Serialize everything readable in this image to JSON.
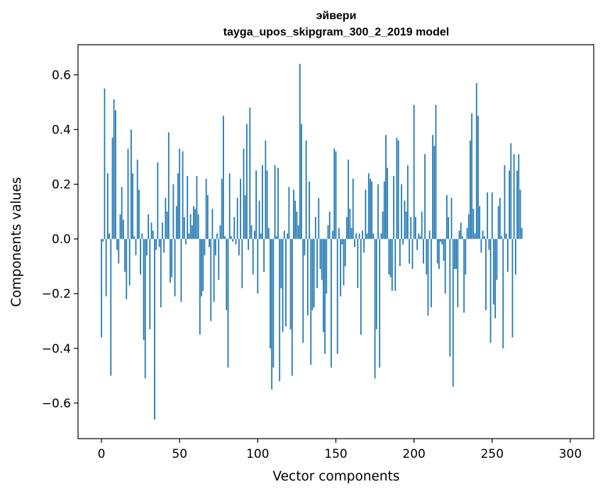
{
  "chart_data": {
    "type": "bar",
    "title": "эйвери",
    "subtitle": "tayga_upos_skipgram_300_2_2019 model",
    "xlabel": "Vector components",
    "ylabel": "Components values",
    "xlim": [
      -15,
      315
    ],
    "ylim": [
      -0.73,
      0.71
    ],
    "xticks": [
      0,
      50,
      100,
      150,
      200,
      250,
      300
    ],
    "xtick_labels": [
      "0",
      "50",
      "100",
      "150",
      "200",
      "250",
      "300"
    ],
    "yticks": [
      -0.6,
      -0.4,
      -0.2,
      0.0,
      0.2,
      0.4,
      0.6
    ],
    "ytick_labels": [
      "−0.6",
      "−0.4",
      "−0.2",
      "0.0",
      "0.2",
      "0.4",
      "0.6"
    ],
    "bar_color": "#1f77b4",
    "bar_width": 0.8,
    "series": [
      {
        "name": "эйвери",
        "x_start": 0,
        "values": [
          -0.36,
          -0.01,
          0.55,
          -0.21,
          0.24,
          0.02,
          -0.5,
          0.37,
          0.51,
          0.47,
          -0.04,
          -0.09,
          0.09,
          0.19,
          0.07,
          -0.12,
          -0.22,
          0.33,
          -0.17,
          0.4,
          0.24,
          0.01,
          -0.06,
          0.29,
          0.18,
          -0.13,
          0.02,
          -0.37,
          -0.51,
          -0.06,
          0.09,
          -0.33,
          0.06,
          0.03,
          -0.66,
          -0.04,
          0.28,
          -0.03,
          -0.25,
          0.06,
          -0.05,
          0.15,
          0.1,
          0.39,
          -0.16,
          -0.14,
          0.2,
          -0.21,
          0.12,
          0.24,
          0.33,
          -0.23,
          0.32,
          0.08,
          -0.02,
          0.23,
          0.02,
          0.09,
          0.05,
          0.12,
          0.11,
          0.23,
          0.09,
          -0.35,
          -0.21,
          -0.19,
          -0.06,
          0.22,
          0.16,
          -0.03,
          -0.3,
          0.11,
          -0.23,
          -0.06,
          0.02,
          -0.15,
          0.05,
          0.22,
          0.45,
          0.01,
          -0.26,
          -0.47,
          0.24,
          0.01,
          -0.01,
          0.08,
          -0.02,
          0.15,
          -0.06,
          0.22,
          -0.18,
          0.33,
          0.16,
          0.42,
          -0.04,
          0.48,
          0.05,
          -0.13,
          0.03,
          0.25,
          -0.2,
          0.14,
          0.02,
          0.27,
          -0.12,
          0.36,
          0.25,
          0.04,
          -0.4,
          -0.55,
          -0.47,
          0.27,
          0.01,
          0.26,
          -0.52,
          -0.18,
          -0.34,
          0.03,
          -0.32,
          0.02,
          0.19,
          -0.33,
          -0.5,
          0.18,
          0.14,
          0.1,
          0.05,
          0.64,
          0.42,
          -0.38,
          -0.06,
          0.36,
          -0.28,
          0.21,
          -0.46,
          -0.26,
          -0.25,
          0.08,
          -0.18,
          0.15,
          -0.11,
          -0.15,
          -0.34,
          -0.42,
          -0.2,
          0.05,
          0.1,
          -0.47,
          0.03,
          0.33,
          0.32,
          -0.42,
          0.04,
          -0.21,
          -0.02,
          -0.17,
          -0.1,
          0.08,
          0.29,
          0.11,
          0.04,
          0.22,
          -0.03,
          0.02,
          -0.18,
          0.02,
          -0.35,
          0.03,
          -0.05,
          0.18,
          0.02,
          0.24,
          0.22,
          0.21,
          0.02,
          -0.51,
          -0.33,
          0.2,
          -0.47,
          0.02,
          0.1,
          0.21,
          0.38,
          0.26,
          -0.13,
          -0.14,
          -0.19,
          0.23,
          -0.19,
          0.37,
          0.36,
          -0.1,
          0.2,
          -0.02,
          0.14,
          0.1,
          0.27,
          -0.09,
          0.08,
          -0.11,
          0.49,
          0.08,
          -0.04,
          0.02,
          0.01,
          0.1,
          -0.09,
          0.31,
          -0.13,
          -0.28,
          0.03,
          -0.25,
          0.38,
          0.34,
          0.49,
          -0.09,
          -0.11,
          -0.01,
          -0.02,
          -0.08,
          -0.2,
          0.16,
          0.08,
          -0.43,
          0.15,
          -0.54,
          -0.11,
          -0.11,
          -0.25,
          0.03,
          0.06,
          0.01,
          -0.27,
          -0.13,
          0.04,
          0.09,
          0.36,
          0.46,
          0.11,
          0.02,
          0.57,
          0.45,
          0.12,
          -0.05,
          0.03,
          0.01,
          -0.26,
          0.17,
          -0.04,
          -0.38,
          0.17,
          -0.24,
          -0.29,
          -0.15,
          0.12,
          0.15,
          0.01,
          -0.4,
          0.27,
          0.02,
          -0.12,
          0.25,
          0.35,
          -0.36,
          0.31,
          -0.13,
          0.25,
          0.31,
          0.18,
          0.04
        ]
      }
    ]
  }
}
